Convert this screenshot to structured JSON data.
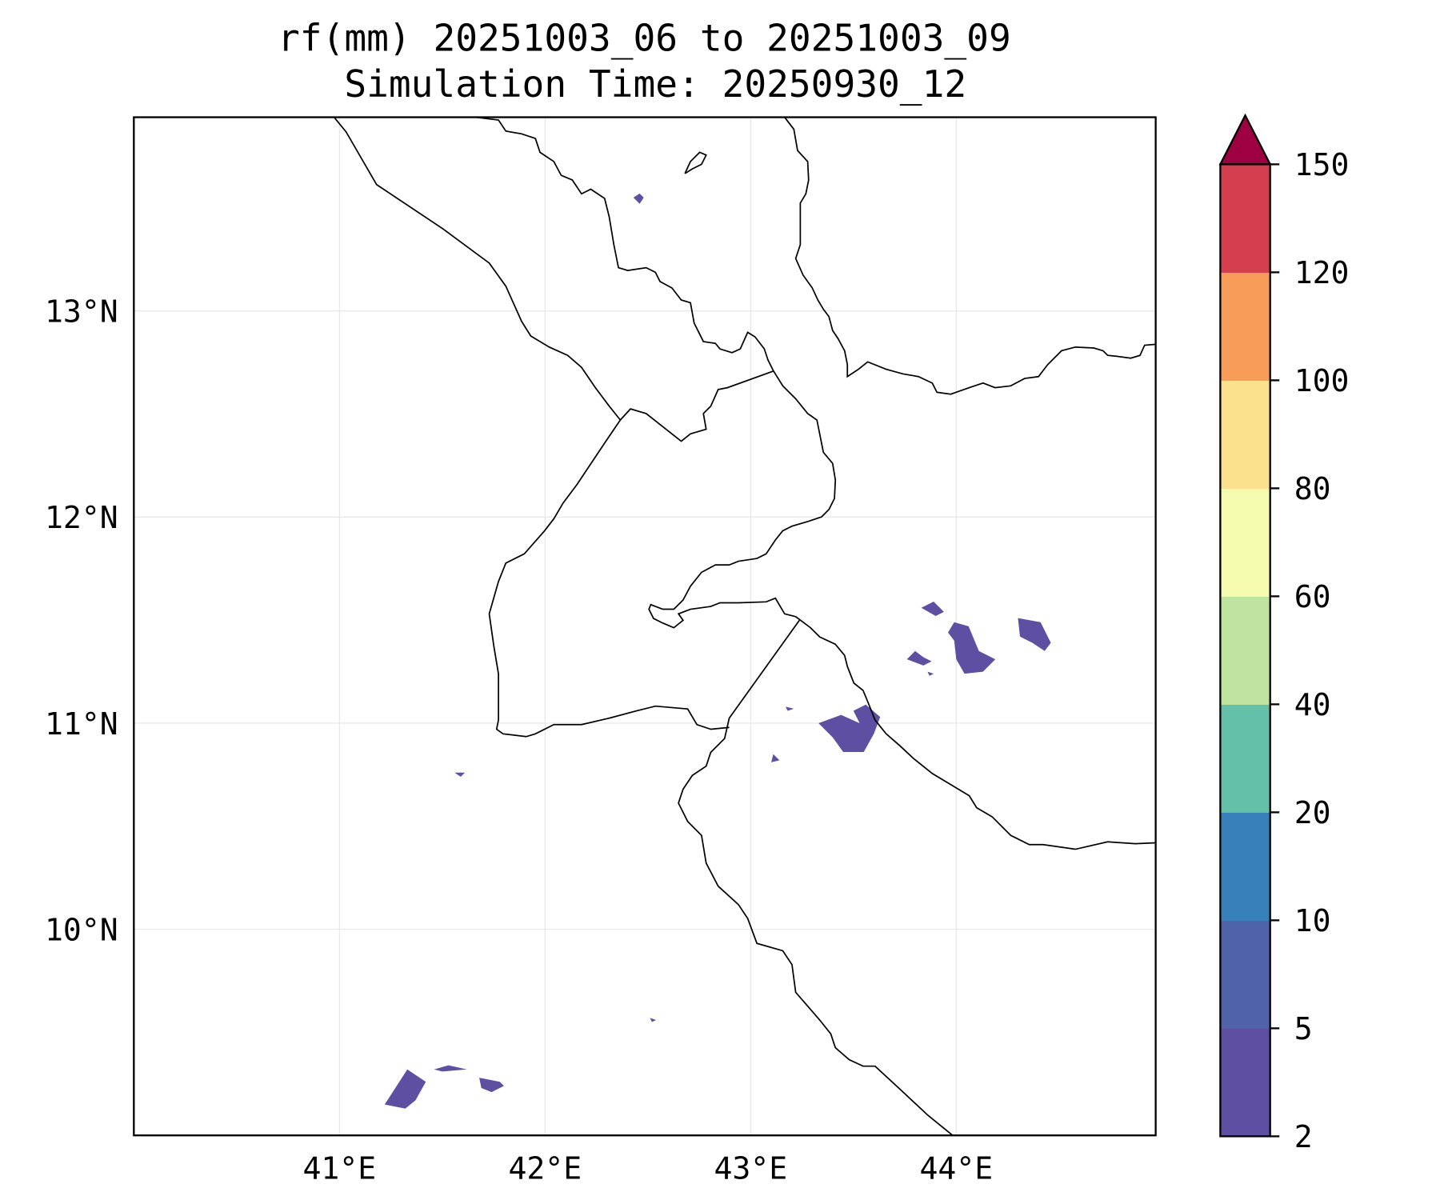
{
  "chart_data": {
    "type": "heatmap",
    "title_line1": "rf(mm) 20251003_06 to 20251003_09",
    "title_line2": "Simulation Time: 20250930_12",
    "xlim": [
      40.0,
      44.97
    ],
    "ylim": [
      9.0,
      13.94
    ],
    "x_ticks": [
      {
        "value": 41,
        "label": "41°E"
      },
      {
        "value": 42,
        "label": "42°E"
      },
      {
        "value": 43,
        "label": "43°E"
      },
      {
        "value": 44,
        "label": "44°E"
      }
    ],
    "y_ticks": [
      {
        "value": 13,
        "label": "13°N"
      },
      {
        "value": 12,
        "label": "12°N"
      },
      {
        "value": 11,
        "label": "11°N"
      },
      {
        "value": 10,
        "label": "10°N"
      }
    ],
    "grid": true,
    "colorbar": {
      "levels": [
        2,
        5,
        10,
        20,
        40,
        60,
        80,
        100,
        120,
        150
      ],
      "labels": [
        "2",
        "5",
        "10",
        "20",
        "40",
        "60",
        "80",
        "100",
        "120",
        "150"
      ],
      "colors": [
        "#5e4fa2",
        "#4f62aa",
        "#3880b9",
        "#64c0a9",
        "#bfe4a0",
        "#f4fbae",
        "#fbe08d",
        "#f89c5a",
        "#d53e4f"
      ],
      "extend_max_color": "#9e0142",
      "placement": "right"
    },
    "rain_areas_2_5mm": [
      [
        [
          41.22,
          9.15
        ],
        [
          41.33,
          9.32
        ],
        [
          41.42,
          9.26
        ],
        [
          41.37,
          9.17
        ],
        [
          41.32,
          9.13
        ]
      ],
      [
        [
          41.46,
          9.32
        ],
        [
          41.53,
          9.34
        ],
        [
          41.62,
          9.32
        ],
        [
          41.5,
          9.31
        ]
      ],
      [
        [
          41.68,
          9.28
        ],
        [
          41.78,
          9.26
        ],
        [
          41.8,
          9.24
        ],
        [
          41.74,
          9.21
        ],
        [
          41.69,
          9.23
        ]
      ],
      [
        [
          42.43,
          13.55
        ],
        [
          42.46,
          13.57
        ],
        [
          42.48,
          13.55
        ],
        [
          42.46,
          13.52
        ]
      ],
      [
        [
          43.83,
          11.56
        ],
        [
          43.89,
          11.59
        ],
        [
          43.94,
          11.54
        ],
        [
          43.9,
          11.52
        ]
      ],
      [
        [
          43.99,
          11.49
        ],
        [
          44.06,
          11.47
        ],
        [
          44.11,
          11.35
        ],
        [
          44.19,
          11.31
        ],
        [
          44.13,
          11.25
        ],
        [
          44.04,
          11.24
        ],
        [
          44.0,
          11.31
        ],
        [
          43.99,
          11.4
        ],
        [
          43.96,
          11.44
        ]
      ],
      [
        [
          44.3,
          11.51
        ],
        [
          44.41,
          11.49
        ],
        [
          44.46,
          11.39
        ],
        [
          44.43,
          11.35
        ],
        [
          44.37,
          11.39
        ],
        [
          44.31,
          11.42
        ]
      ],
      [
        [
          43.8,
          11.35
        ],
        [
          43.84,
          11.32
        ],
        [
          43.88,
          11.3
        ],
        [
          43.84,
          11.28
        ],
        [
          43.76,
          11.31
        ]
      ],
      [
        [
          43.33,
          11.0
        ],
        [
          43.44,
          11.04
        ],
        [
          43.53,
          11.0
        ],
        [
          43.5,
          11.06
        ],
        [
          43.56,
          11.09
        ],
        [
          43.63,
          11.03
        ],
        [
          43.6,
          10.95
        ],
        [
          43.55,
          10.86
        ],
        [
          43.45,
          10.86
        ],
        [
          43.4,
          10.93
        ]
      ],
      [
        [
          43.11,
          10.85
        ],
        [
          43.14,
          10.82
        ],
        [
          43.1,
          10.81
        ]
      ],
      [
        [
          43.17,
          11.08
        ],
        [
          43.21,
          11.07
        ],
        [
          43.18,
          11.06
        ]
      ],
      [
        [
          41.56,
          10.76
        ],
        [
          41.61,
          10.76
        ],
        [
          41.59,
          10.74
        ]
      ],
      [
        [
          42.51,
          9.57
        ],
        [
          42.54,
          9.56
        ],
        [
          42.52,
          9.55
        ]
      ],
      [
        [
          43.86,
          11.25
        ],
        [
          43.89,
          11.24
        ],
        [
          43.87,
          11.23
        ]
      ]
    ]
  }
}
